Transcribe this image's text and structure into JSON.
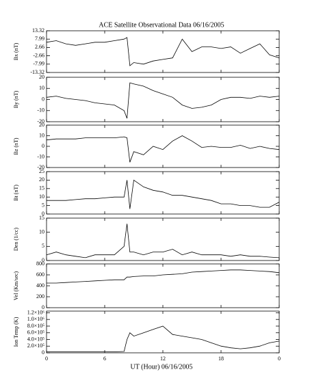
{
  "title": "ACE Satellite Observational Data   06/16/2005",
  "xlabel": "UT (Hour)   06/16/2005",
  "xlim": [
    0,
    24
  ],
  "xticks": [
    0,
    6,
    12,
    18,
    {
      "value": 24,
      "label": "0"
    }
  ],
  "x": [
    0,
    1,
    2,
    3,
    4,
    5,
    6,
    7,
    8,
    8.3,
    8.6,
    9,
    10,
    11,
    12,
    13,
    14,
    15,
    16,
    17,
    18,
    19,
    20,
    21,
    22,
    23,
    24
  ],
  "chart_data": [
    {
      "type": "line",
      "ylabel": "Bx (nT)",
      "color": "#000000",
      "ylim": [
        -13.32,
        13.32
      ],
      "yticks": [
        -13.32,
        -7.99,
        -2.66,
        2.66,
        7.99,
        13.32
      ],
      "values": [
        6,
        7,
        5,
        4,
        5,
        6,
        6,
        7,
        8,
        9,
        -9,
        -7,
        -8,
        -6,
        -5,
        -4,
        8,
        0,
        3,
        3,
        2,
        3,
        -1,
        2,
        5,
        -2,
        -4
      ]
    },
    {
      "type": "line",
      "ylabel": "By (nT)",
      "color": "#000000",
      "ylim": [
        -20,
        20
      ],
      "yticks": [
        -20,
        -10,
        0,
        10,
        20
      ],
      "values": [
        2,
        3,
        1,
        0,
        -1,
        -3,
        -4,
        -5,
        -10,
        -17,
        15,
        14,
        12,
        8,
        5,
        2,
        -5,
        -8,
        -7,
        -5,
        0,
        2,
        2,
        1,
        3,
        2,
        3
      ]
    },
    {
      "type": "line",
      "ylabel": "Bz (nT)",
      "color": "#000000",
      "ylim": [
        -20,
        20
      ],
      "yticks": [
        -20,
        -10,
        0,
        10,
        20
      ],
      "values": [
        6,
        7,
        7,
        7,
        8,
        8,
        8,
        8,
        9,
        8,
        -15,
        -5,
        -8,
        0,
        -3,
        5,
        10,
        5,
        -1,
        0,
        -1,
        -1,
        1,
        -2,
        0,
        -2,
        -3
      ]
    },
    {
      "type": "line",
      "ylabel": "Bt (nT)",
      "color": "#000000",
      "ylim": [
        0,
        25
      ],
      "yticks": [
        0,
        5,
        10,
        15,
        20,
        25
      ],
      "values": [
        8,
        8,
        8,
        8.5,
        9,
        9,
        9.5,
        10,
        10,
        20,
        3,
        20,
        16,
        14,
        13,
        11,
        11,
        10,
        9,
        8,
        6,
        6,
        5,
        5,
        4,
        4,
        7
      ]
    },
    {
      "type": "line",
      "ylabel": "Den (1/cc)",
      "color": "#000000",
      "ylim": [
        0,
        15
      ],
      "yticks": [
        0,
        5,
        10,
        15
      ],
      "values": [
        2,
        3,
        2,
        1.5,
        1,
        2,
        2,
        2,
        5,
        13,
        3,
        3,
        2,
        3,
        3,
        4,
        2,
        3,
        2,
        2,
        2,
        1.5,
        2,
        1.5,
        1.5,
        1.2,
        1
      ]
    },
    {
      "type": "line",
      "ylabel": "Vel (Km/sec)",
      "color": "#000000",
      "ylim": [
        0,
        800
      ],
      "yticks": [
        0,
        200,
        400,
        600,
        800
      ],
      "values": [
        450,
        450,
        460,
        470,
        480,
        490,
        500,
        510,
        510,
        560,
        560,
        570,
        580,
        580,
        600,
        610,
        620,
        650,
        660,
        670,
        680,
        690,
        690,
        680,
        670,
        660,
        640
      ]
    },
    {
      "type": "line",
      "ylabel": "Ion Temp (K)",
      "color": "#000000",
      "ylim": [
        0,
        1250000
      ],
      "yticks": [
        0,
        {
          "value": 200000,
          "label": "2.0×10⁵"
        },
        {
          "value": 400000,
          "label": "4.0×10⁵"
        },
        {
          "value": 600000,
          "label": "6.0×10⁵"
        },
        {
          "value": 800000,
          "label": "8.0×10⁵"
        },
        {
          "value": 1000000,
          "label": "1.0×10⁶"
        },
        {
          "value": 1200000,
          "label": "1.2×10⁶"
        }
      ],
      "values": [
        30000,
        30000,
        30000,
        30000,
        30000,
        30000,
        30000,
        30000,
        40000,
        400000,
        600000,
        500000,
        600000,
        700000,
        800000,
        550000,
        500000,
        450000,
        400000,
        300000,
        200000,
        150000,
        120000,
        150000,
        200000,
        300000,
        350000
      ]
    }
  ]
}
